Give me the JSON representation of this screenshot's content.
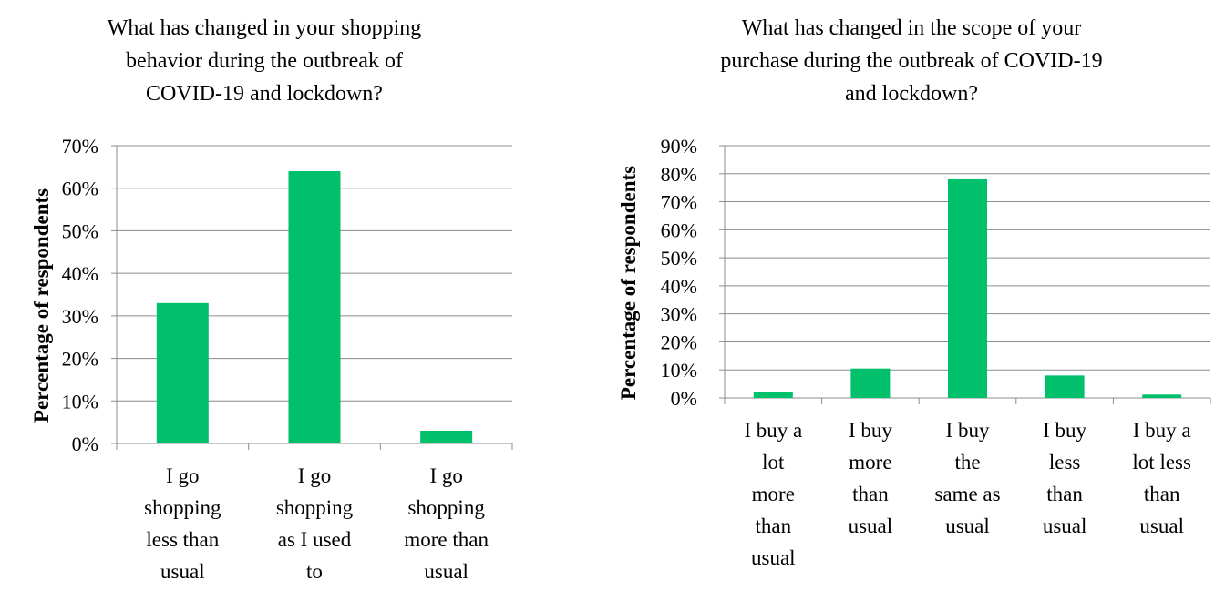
{
  "chart_data": [
    {
      "type": "bar",
      "title": "What has changed in your shopping behavior during the outbreak of COVID-19 and lockdown?",
      "title_lines": [
        "What has changed in your shopping",
        "behavior during the outbreak of",
        "COVID-19 and lockdown?"
      ],
      "ylabel": "Percentage of respondents",
      "xlabel": "",
      "categories": [
        "I go shopping less than usual",
        "I go shopping as I used to",
        "I go shopping more than usual"
      ],
      "category_lines": [
        [
          "I go",
          "shopping",
          "less than",
          "usual"
        ],
        [
          "I go",
          "shopping",
          "as I used",
          "to"
        ],
        [
          "I go",
          "shopping",
          "more than",
          "usual"
        ]
      ],
      "values": [
        33,
        64,
        3
      ],
      "ylim": [
        0,
        70
      ],
      "yticks": [
        "0%",
        "10%",
        "20%",
        "30%",
        "40%",
        "50%",
        "60%",
        "70%"
      ],
      "grid": true,
      "color": "#00c06b"
    },
    {
      "type": "bar",
      "title": "What has changed in the scope of your purchase during the outbreak of COVID-19 and lockdown?",
      "title_lines": [
        "What has changed in the scope of your",
        "purchase during the outbreak of COVID-19",
        "and lockdown?"
      ],
      "ylabel": "Percentage of respondents",
      "xlabel": "",
      "categories": [
        "I buy a lot more than usual",
        "I buy more than usual",
        "I buy the same as usual",
        "I buy less than usual",
        "I buy a lot less than usual"
      ],
      "category_lines": [
        [
          "I buy a",
          "lot",
          "more",
          "than",
          "usual"
        ],
        [
          "I buy",
          "more",
          "than",
          "usual"
        ],
        [
          "I buy",
          "the",
          "same as",
          "usual"
        ],
        [
          "I buy",
          "less",
          "than",
          "usual"
        ],
        [
          "I buy a",
          "lot less",
          "than",
          "usual"
        ]
      ],
      "values": [
        2,
        10.5,
        78,
        8,
        1.2
      ],
      "ylim": [
        0,
        90
      ],
      "yticks": [
        "0%",
        "10%",
        "20%",
        "30%",
        "40%",
        "50%",
        "60%",
        "70%",
        "80%",
        "90%"
      ],
      "grid": true,
      "color": "#00c06b"
    }
  ]
}
